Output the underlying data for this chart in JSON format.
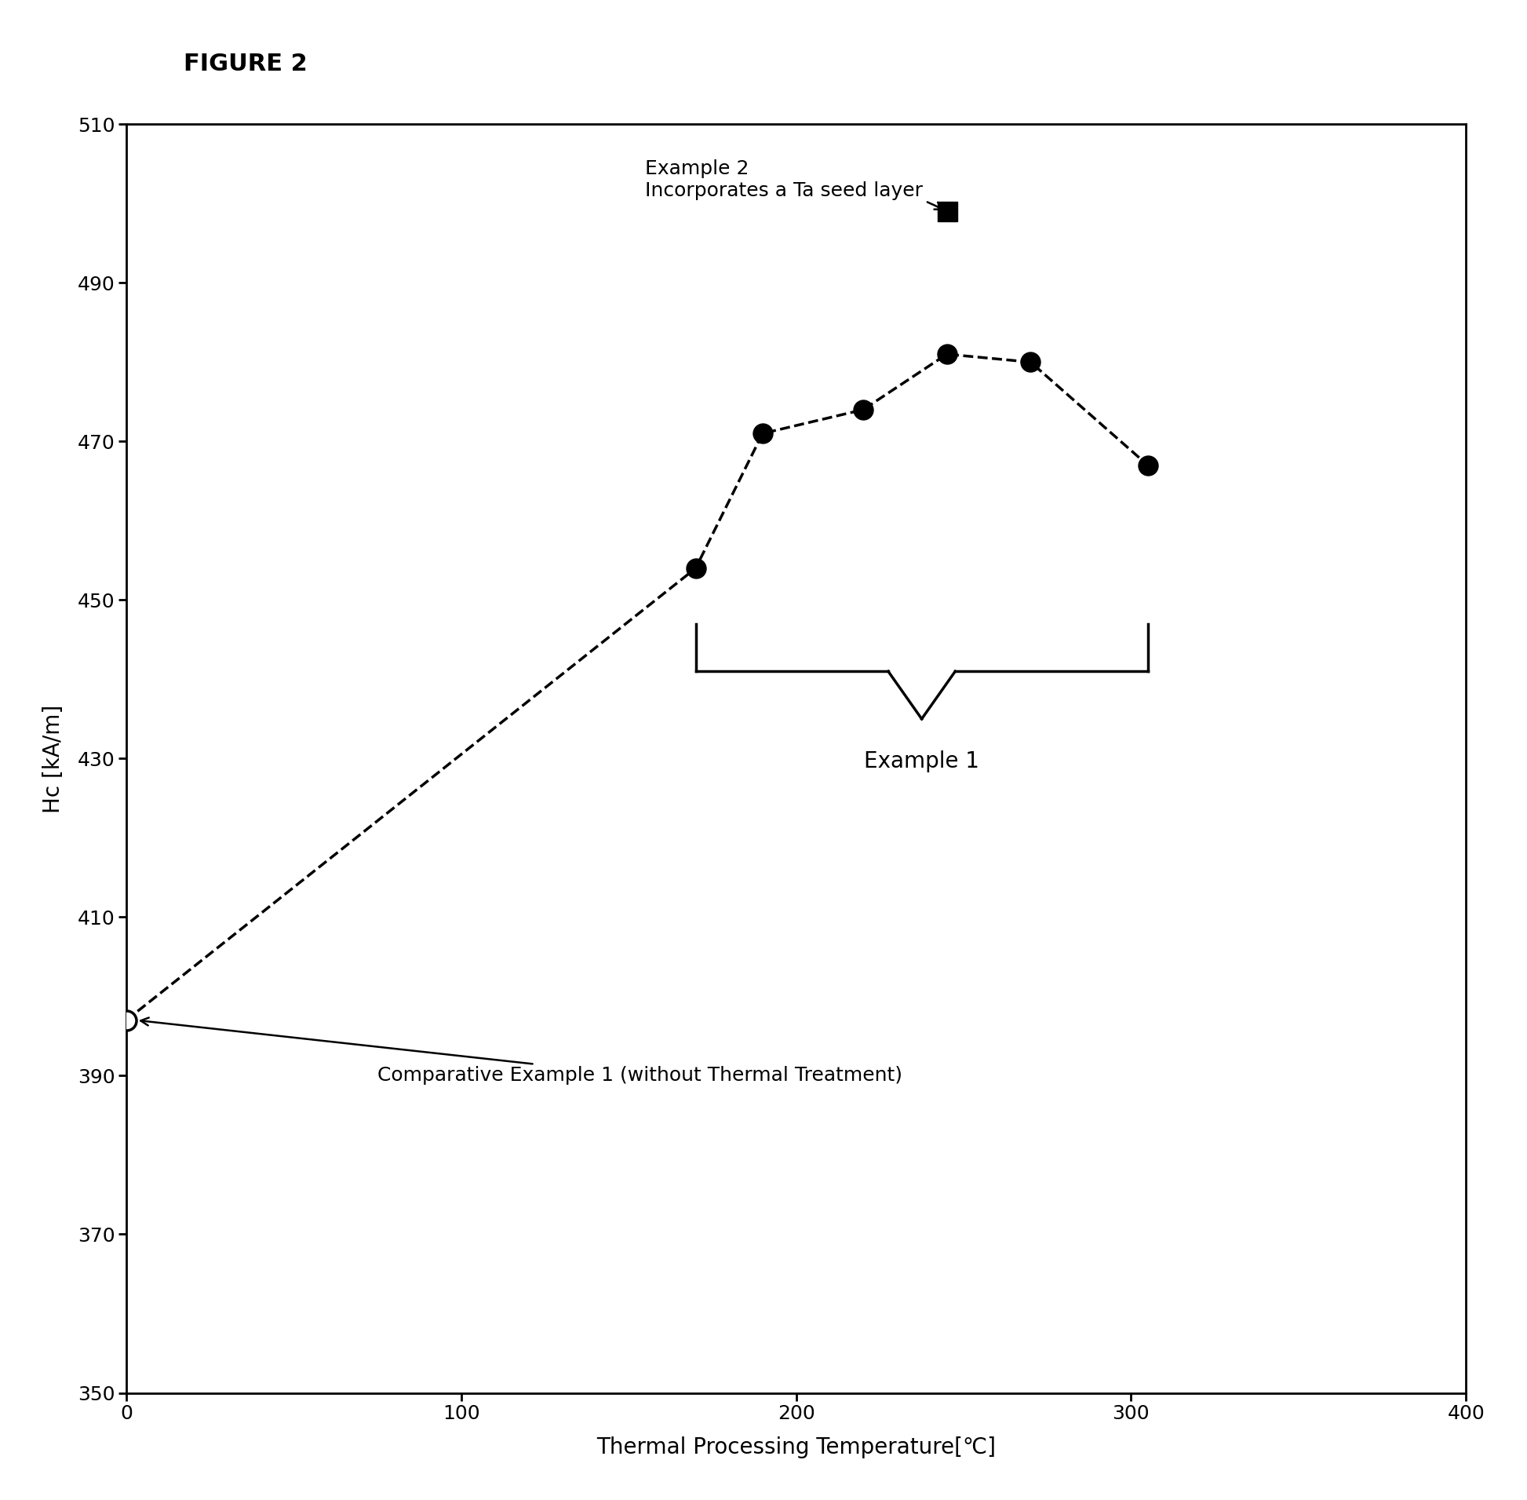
{
  "title": "FIGURE 2",
  "xlabel": "Thermal Processing Temperature[℃]",
  "ylabel": "Hc [kA/m]",
  "xlim": [
    0,
    400
  ],
  "ylim": [
    350,
    510
  ],
  "xticks": [
    0,
    100,
    200,
    300,
    400
  ],
  "yticks": [
    350,
    370,
    390,
    410,
    430,
    450,
    470,
    490,
    510
  ],
  "example1_x": [
    0,
    170,
    190,
    220,
    245,
    270,
    305
  ],
  "example1_y": [
    397,
    454,
    471,
    474,
    481,
    480,
    467
  ],
  "comparative_x": [
    0
  ],
  "comparative_y": [
    397
  ],
  "example2_x": [
    245
  ],
  "example2_y": [
    499
  ],
  "line_color": "#000000",
  "fill_color": "#000000",
  "open_circle_color": "#ffffff",
  "background_color": "#ffffff",
  "annotation_comparative": "Comparative Example 1 (without Thermal Treatment)",
  "annotation_example1": "Example 1",
  "annotation_example2_line1": "Example 2",
  "annotation_example2_line2": "Incorporates a Ta seed layer",
  "title_fontsize": 22,
  "label_fontsize": 20,
  "tick_fontsize": 18,
  "annotation_fontsize": 18
}
